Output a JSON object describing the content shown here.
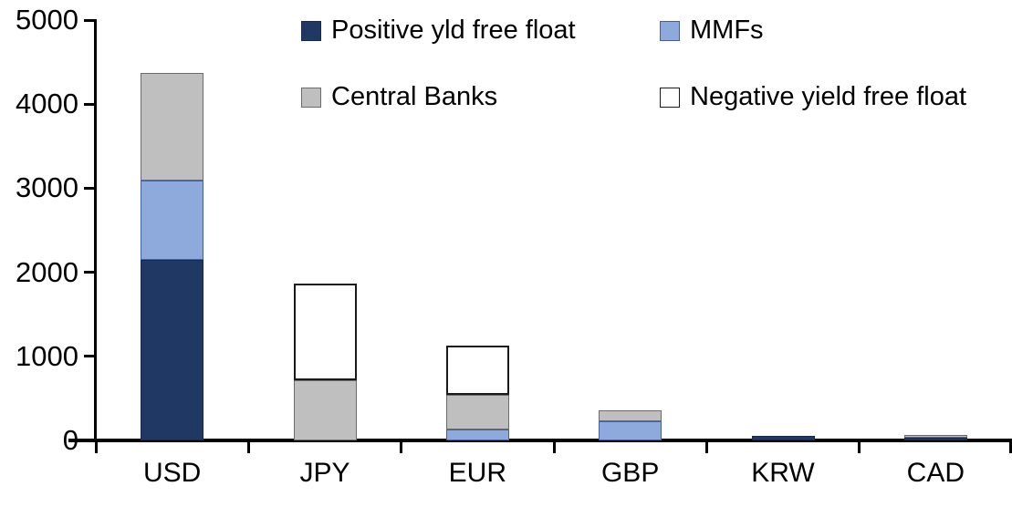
{
  "chart_data": {
    "type": "bar",
    "stacked": true,
    "categories": [
      "USD",
      "JPY",
      "EUR",
      "GBP",
      "KRW",
      "CAD"
    ],
    "series": [
      {
        "name": "Positive yld free float",
        "color": "#1f3864",
        "border": "#17294c",
        "values": [
          2150,
          0,
          0,
          0,
          50,
          30
        ]
      },
      {
        "name": "MMFs",
        "color": "#8ea9db",
        "border": "#44619d",
        "values": [
          940,
          0,
          125,
          230,
          0,
          0
        ]
      },
      {
        "name": "Central Banks",
        "color": "#bfbfbf",
        "border": "#6b6b6b",
        "values": [
          1280,
          715,
          415,
          125,
          0,
          40
        ]
      },
      {
        "name": "Negative yield free float",
        "color": "#ffffff",
        "border": "#1a1a1a",
        "values": [
          0,
          1150,
          590,
          0,
          0,
          0
        ]
      }
    ],
    "ylim": [
      0,
      5000
    ],
    "yticks": [
      0,
      1000,
      2000,
      3000,
      4000,
      5000
    ],
    "ytick_labels": [
      "0",
      "1000",
      "2000",
      "3000",
      "4000",
      "5000"
    ],
    "grid": false,
    "legend_position": "top-inside",
    "legend_columns": 2
  }
}
